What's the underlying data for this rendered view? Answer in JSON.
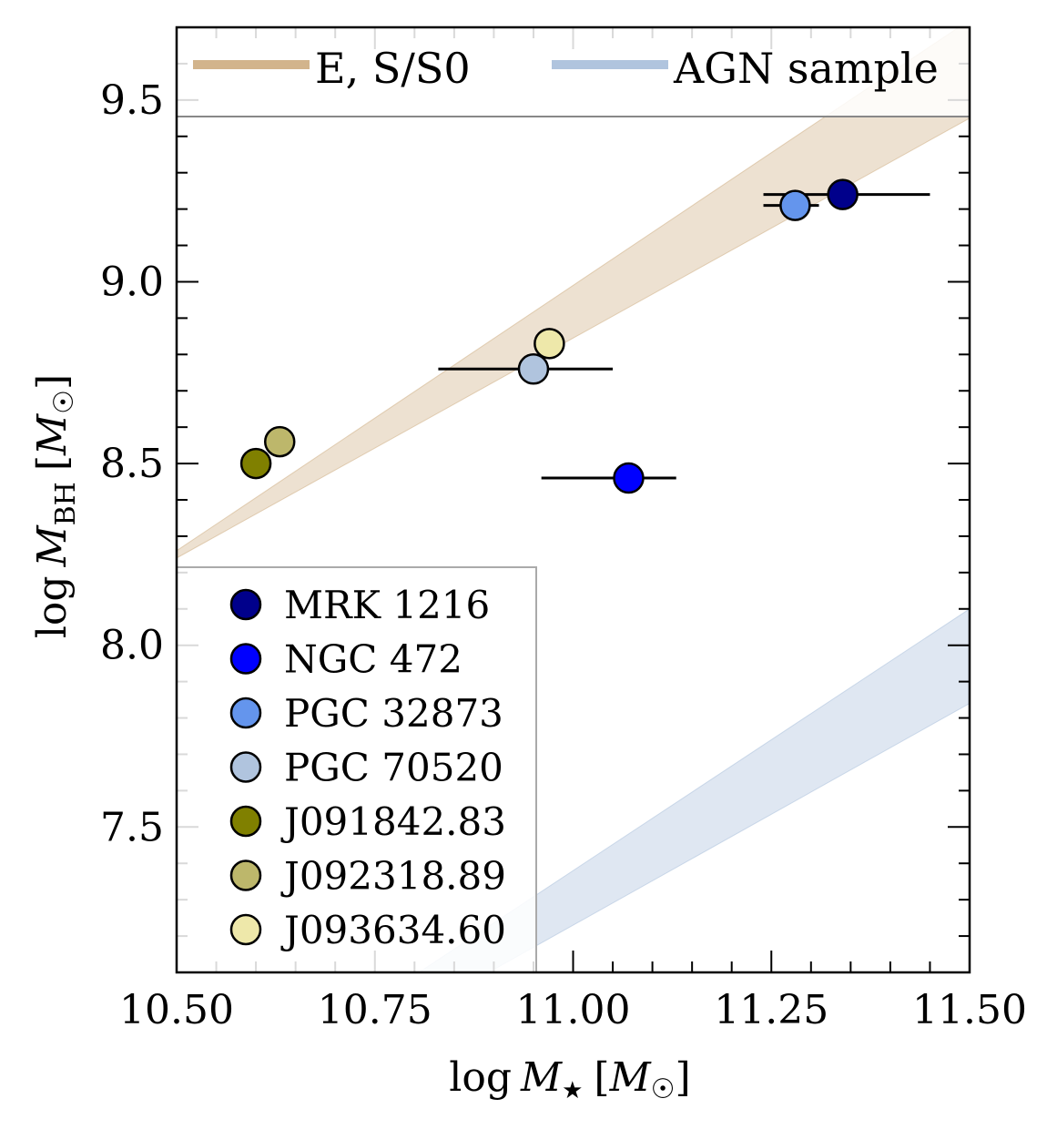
{
  "chart_data": {
    "type": "scatter",
    "xlabel": "log M★ [M☉]",
    "ylabel": "log M_BH [M☉]",
    "xlim": [
      10.5,
      11.5
    ],
    "ylim": [
      7.1,
      9.7
    ],
    "xticks": [
      10.5,
      10.75,
      11.0,
      11.25,
      11.5
    ],
    "xtick_labels": [
      "10.50",
      "10.75",
      "11.00",
      "11.25",
      "11.50"
    ],
    "yticks": [
      7.5,
      8.0,
      8.5,
      9.0,
      9.5
    ],
    "ytick_labels": [
      "7.5",
      "8.0",
      "8.5",
      "9.0",
      "9.5"
    ],
    "bands": [
      {
        "name": "E, S/S0",
        "color": "#D2B48C",
        "x": [
          10.5,
          11.5
        ],
        "lower": [
          8.24,
          9.45
        ],
        "upper": [
          8.26,
          9.72
        ]
      },
      {
        "name": "AGN sample",
        "color": "#B0C4DE",
        "x": [
          10.5,
          11.5
        ],
        "lower": [
          6.62,
          7.84
        ],
        "upper": [
          6.66,
          8.1
        ]
      }
    ],
    "points": [
      {
        "name": "MRK 1216",
        "x": 11.34,
        "y": 9.24,
        "xerr_low": 11.24,
        "xerr_high": 11.45,
        "color": "#00008B"
      },
      {
        "name": "NGC 472",
        "x": 11.07,
        "y": 8.46,
        "xerr_low": 10.96,
        "xerr_high": 11.13,
        "color": "#0000FF"
      },
      {
        "name": "PGC 32873",
        "x": 11.28,
        "y": 9.21,
        "xerr_low": 11.24,
        "xerr_high": 11.31,
        "color": "#6495ED"
      },
      {
        "name": "PGC 70520",
        "x": 10.95,
        "y": 8.76,
        "xerr_low": 10.83,
        "xerr_high": 11.05,
        "color": "#B0C4DE"
      },
      {
        "name": "J091842.83",
        "x": 10.6,
        "y": 8.5,
        "color": "#808000"
      },
      {
        "name": "J092318.89",
        "x": 10.63,
        "y": 8.56,
        "color": "#BDB76B"
      },
      {
        "name": "J093634.60",
        "x": 10.97,
        "y": 8.83,
        "color": "#EEE8AA"
      }
    ],
    "legend_top": {
      "location": "top",
      "entries": [
        {
          "label": "E, S/S0",
          "color": "#D2B48C"
        },
        {
          "label": "AGN sample",
          "color": "#B0C4DE"
        }
      ]
    },
    "legend_points": {
      "location": "lower-left",
      "entries": [
        {
          "label": "MRK 1216",
          "color": "#00008B"
        },
        {
          "label": "NGC 472",
          "color": "#0000FF"
        },
        {
          "label": "PGC 32873",
          "color": "#6495ED"
        },
        {
          "label": "PGC 70520",
          "color": "#B0C4DE"
        },
        {
          "label": "J091842.83",
          "color": "#808000"
        },
        {
          "label": "J092318.89",
          "color": "#BDB76B"
        },
        {
          "label": "J093634.60",
          "color": "#EEE8AA"
        }
      ]
    }
  }
}
